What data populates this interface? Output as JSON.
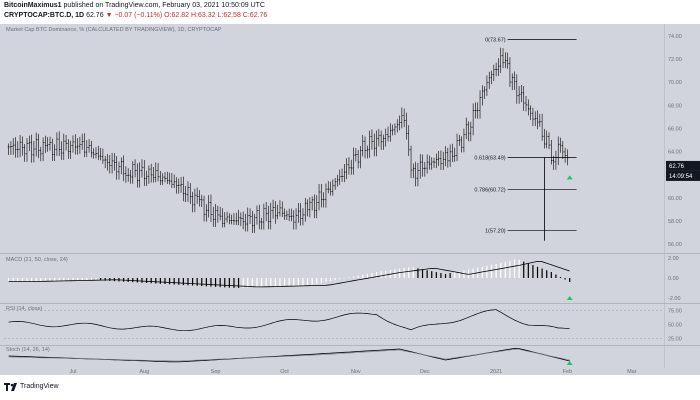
{
  "header": {
    "author": "BitcoinMaximus1",
    "published_text": "published on TradingView.com, February 03, 2021 10:50:09 UTC",
    "symbol": "CRYPTOCAP:BTC.D, 1D",
    "last": "62.76",
    "change": "▼ −0.07 (−0.11%)",
    "open": "O:62.82",
    "high": "H:63.32",
    "low": "L:62.58",
    "close": "C:62.76"
  },
  "chart": {
    "main_label": "Market Cap BTC Dominance, % (CALCULATED BY TRADINGVIEW), 1D, CRYPTOCAP",
    "macd_label": "MACD (21, 50, close, 24)",
    "rsi_label": "RSI (14, close)",
    "stoch_label": "Stoch (14, 26, 14)",
    "price_ticks": [
      "74.00",
      "72.00",
      "70.00",
      "68.00",
      "66.00",
      "64.00",
      "62.00",
      "60.00",
      "58.00",
      "56.00"
    ],
    "macd_ticks": [
      "2.00",
      "0.00",
      "-2.00"
    ],
    "rsi_ticks": [
      "75.00",
      "50.00",
      "25.00"
    ],
    "x_ticks": [
      "Jul",
      "Aug",
      "Sep",
      "Oct",
      "Nov",
      "Dec",
      "2021",
      "Feb",
      "Mar"
    ],
    "last_price_badge": "62.76",
    "countdown_badge": "14:09:54",
    "fib_levels": [
      {
        "label": "0(73.67)",
        "value": 73.67
      },
      {
        "label": "0.618(63.49)",
        "value": 63.49
      },
      {
        "label": "0.786(60.72)",
        "value": 60.72
      },
      {
        "label": "1(57.20)",
        "value": 57.2
      }
    ]
  },
  "chart_data": [
    {
      "type": "candlestick",
      "title": "Market Cap BTC Dominance, % (CALCULATED BY TRADINGVIEW), 1D, CRYPTOCAP",
      "ylim": [
        55.5,
        74.5
      ],
      "x_range": [
        "2020-06-01",
        "2021-03-15"
      ],
      "series": [
        {
          "name": "BTC.D",
          "points": [
            [
              "2020-06-03",
              64.4
            ],
            [
              "2020-06-20",
              64.3
            ],
            [
              "2020-07-05",
              64.6
            ],
            [
              "2020-07-15",
              63.2
            ],
            [
              "2020-07-25",
              62.3
            ],
            [
              "2020-08-05",
              62.0
            ],
            [
              "2020-08-15",
              61.2
            ],
            [
              "2020-08-25",
              59.5
            ],
            [
              "2020-09-03",
              58.2
            ],
            [
              "2020-09-12",
              58.0
            ],
            [
              "2020-09-20",
              58.3
            ],
            [
              "2020-09-28",
              58.9
            ],
            [
              "2020-10-05",
              58.2
            ],
            [
              "2020-10-12",
              59.2
            ],
            [
              "2020-10-20",
              60.6
            ],
            [
              "2020-10-28",
              62.5
            ],
            [
              "2020-11-05",
              64.5
            ],
            [
              "2020-11-15",
              65.4
            ],
            [
              "2020-11-22",
              67.1
            ],
            [
              "2020-11-25",
              62.0
            ],
            [
              "2020-12-02",
              63.0
            ],
            [
              "2020-12-12",
              63.5
            ],
            [
              "2020-12-20",
              66.0
            ],
            [
              "2020-12-28",
              70.0
            ],
            [
              "2021-01-04",
              72.2
            ],
            [
              "2021-01-08",
              70.0
            ],
            [
              "2021-01-14",
              68.0
            ],
            [
              "2021-01-20",
              66.0
            ],
            [
              "2021-01-26",
              63.5
            ],
            [
              "2021-01-29",
              64.5
            ],
            [
              "2021-02-02",
              62.76
            ]
          ]
        }
      ]
    },
    {
      "type": "histogram",
      "title": "MACD (21, 50, close, 24)",
      "ylim": [
        -2.4,
        2.2
      ],
      "series": [
        {
          "name": "MACD",
          "points": [
            [
              "2020-06-03",
              -0.4
            ],
            [
              "2020-07-10",
              -0.2
            ],
            [
              "2020-08-10",
              -0.6
            ],
            [
              "2020-09-10",
              -1.0
            ],
            [
              "2020-10-10",
              -0.8
            ],
            [
              "2020-11-10",
              0.6
            ],
            [
              "2020-11-25",
              1.1
            ],
            [
              "2020-12-10",
              0.4
            ],
            [
              "2021-01-01",
              1.4
            ],
            [
              "2021-01-10",
              1.9
            ],
            [
              "2021-01-25",
              0.6
            ],
            [
              "2021-02-02",
              -0.4
            ]
          ]
        }
      ]
    },
    {
      "type": "line",
      "title": "RSI (14, close)",
      "ylim": [
        15,
        85
      ],
      "series": [
        {
          "name": "RSI",
          "points": [
            [
              "2020-06-03",
              52
            ],
            [
              "2020-07-10",
              48
            ],
            [
              "2020-08-10",
              42
            ],
            [
              "2020-09-10",
              45
            ],
            [
              "2020-10-10",
              58
            ],
            [
              "2020-11-10",
              70
            ],
            [
              "2020-11-25",
              38
            ],
            [
              "2020-12-10",
              55
            ],
            [
              "2021-01-01",
              74
            ],
            [
              "2021-01-15",
              52
            ],
            [
              "2021-01-28",
              40
            ],
            [
              "2021-02-02",
              42
            ]
          ]
        }
      ]
    },
    {
      "type": "line",
      "title": "Stoch (14, 26, 14)",
      "series": [
        {
          "name": "%K",
          "points": [
            [
              "2020-06-03",
              0.5
            ],
            [
              "2020-08-15",
              0.2
            ],
            [
              "2020-10-15",
              0.6
            ],
            [
              "2020-11-20",
              0.85
            ],
            [
              "2020-12-10",
              0.3
            ],
            [
              "2021-01-10",
              0.9
            ],
            [
              "2021-02-02",
              0.25
            ]
          ]
        },
        {
          "name": "%D",
          "points": [
            [
              "2020-06-03",
              0.45
            ],
            [
              "2020-08-15",
              0.25
            ],
            [
              "2020-10-15",
              0.55
            ],
            [
              "2020-11-20",
              0.8
            ],
            [
              "2020-12-10",
              0.35
            ],
            [
              "2021-01-10",
              0.85
            ],
            [
              "2021-02-02",
              0.3
            ]
          ]
        }
      ]
    }
  ],
  "footer": {
    "brand": "TradingView"
  },
  "colors": {
    "bg": "#d1d4dc",
    "accent_green": "#26c165",
    "badge": "#131722",
    "down": "#d12a2a"
  }
}
